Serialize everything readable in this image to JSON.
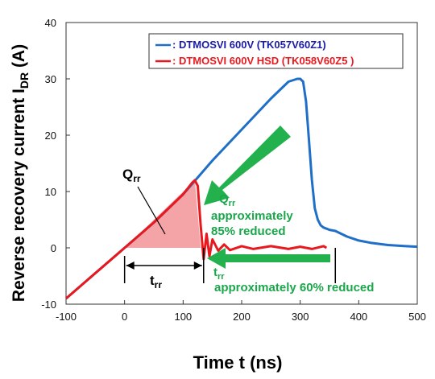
{
  "chart_data": {
    "type": "line",
    "xlabel": "Time t (ns)",
    "ylabel_main": "Reverse recovery current I",
    "ylabel_sub": "DR",
    "ylabel_unit": " (A)",
    "xlim": [
      -100,
      500
    ],
    "ylim": [
      -10,
      40
    ],
    "x_ticks": [
      -100,
      0,
      100,
      200,
      300,
      400,
      500
    ],
    "y_ticks": [
      -10,
      0,
      10,
      20,
      30,
      40
    ],
    "x_tick_labels": [
      "-100",
      "0",
      "100",
      "200",
      "300",
      "400",
      "500"
    ],
    "y_tick_labels": [
      "-10",
      "0",
      "10",
      "20",
      "30",
      "40"
    ],
    "grid": false,
    "legend_placement": "top-right",
    "series": [
      {
        "name": ": DTMOSVI 600V (TK057V60Z1)",
        "color": "#1f6fc8",
        "x": [
          -100,
          -50,
          0,
          50,
          100,
          150,
          200,
          250,
          280,
          295,
          300,
          305,
          310,
          315,
          320,
          325,
          330,
          335,
          340,
          345,
          350,
          360,
          370,
          380,
          400,
          420,
          450,
          480,
          500
        ],
        "y": [
          -9,
          -4.5,
          0,
          4.5,
          9.5,
          15.5,
          21,
          26.5,
          29.5,
          30,
          30,
          29.5,
          26,
          19,
          12,
          7,
          5,
          4,
          3.6,
          3.4,
          3.2,
          3,
          2.5,
          2,
          1.3,
          0.9,
          0.5,
          0.3,
          0.2
        ]
      },
      {
        "name": ": DTMOSVI 600V HSD (TK058V60Z5 )",
        "color": "#e8191e",
        "x": [
          -100,
          -50,
          0,
          50,
          100,
          115,
          120,
          125,
          130,
          135,
          140,
          145,
          150,
          160,
          170,
          180,
          200,
          220,
          250,
          280,
          300,
          320,
          340,
          345
        ],
        "y": [
          -9,
          -4.5,
          0,
          4.5,
          9.5,
          11.5,
          12,
          11,
          4,
          -2,
          2.5,
          -1.5,
          1.5,
          -0.5,
          0.6,
          -0.4,
          0.3,
          -0.2,
          0.3,
          -0.2,
          0.2,
          -0.2,
          0.3,
          0
        ]
      }
    ],
    "qrr_area": {
      "color": "#f4a3a6",
      "x_start": 0,
      "x_peak": 120,
      "x_end": 130,
      "y_peak": 12
    },
    "annotations": {
      "qrr_label": "Q",
      "qrr_sub": "rr",
      "trr_label": "t",
      "trr_sub": "rr",
      "qrr_reduction_label": "Q",
      "qrr_reduction_sub": "rr",
      "qrr_reduction_line1": "approximately",
      "qrr_reduction_line2": "85% reduced",
      "trr_reduction_label": "t",
      "trr_reduction_sub": "rr",
      "trr_reduction_text": "approximately 60% reduced"
    },
    "annotation_colors": {
      "green": "#1aa64a",
      "arrow": "#22b14c"
    }
  }
}
